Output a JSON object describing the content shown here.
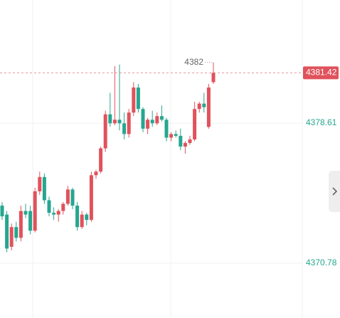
{
  "chart_data": {
    "type": "candlestick",
    "open": [
      4374.0,
      4373.5,
      4371.7,
      4372.8,
      4372.2,
      4373.7,
      4373.7,
      4372.6,
      4374.8,
      4375.6,
      4374.3,
      4373.6,
      4373.5,
      4373.7,
      4374.1,
      4374.9,
      4374.0,
      4372.8,
      4373.5,
      4373.2,
      4375.7,
      4375.9,
      4377.2,
      4379.1,
      4378.6,
      4378.8,
      4378.6,
      4378.0,
      4379.2,
      4380.6,
      4379.4,
      4378.3,
      4378.8,
      4378.6,
      4379.0,
      4378.8,
      4377.8,
      4378.0,
      4377.9,
      4377.3,
      4377.5,
      4377.7,
      4379.4,
      4379.7,
      4378.4,
      4380.9
    ],
    "high": [
      4374.2,
      4373.7,
      4373.0,
      4373.1,
      4374.0,
      4374.1,
      4374.0,
      4375.0,
      4375.9,
      4375.8,
      4374.5,
      4373.9,
      4373.8,
      4374.2,
      4375.1,
      4375.0,
      4374.2,
      4373.7,
      4373.6,
      4375.9,
      4376.0,
      4377.3,
      4379.3,
      4380.3,
      4381.8,
      4381.88,
      4379.2,
      4379.4,
      4380.9,
      4380.8,
      4379.5,
      4378.9,
      4379.3,
      4379.2,
      4379.6,
      4378.9,
      4378.1,
      4378.2,
      4378.3,
      4377.6,
      4377.9,
      4379.8,
      4379.8,
      4380.3,
      4380.8,
      4382.0
    ],
    "low": [
      4373.2,
      4371.4,
      4371.5,
      4372.0,
      4372.0,
      4373.3,
      4372.4,
      4372.5,
      4374.6,
      4374.1,
      4373.4,
      4373.2,
      4373.1,
      4373.5,
      4374.0,
      4373.8,
      4372.6,
      4372.7,
      4372.9,
      4373.1,
      4375.5,
      4375.8,
      4377.0,
      4378.4,
      4378.5,
      4378.2,
      4377.7,
      4377.8,
      4379.0,
      4379.2,
      4378.1,
      4378.0,
      4378.4,
      4378.5,
      4378.7,
      4377.6,
      4377.6,
      4377.8,
      4377.1,
      4376.9,
      4377.4,
      4377.6,
      4379.2,
      4379.2,
      4378.3,
      4380.8
    ],
    "close": [
      4373.4,
      4371.6,
      4372.8,
      4372.2,
      4373.7,
      4373.5,
      4372.6,
      4374.8,
      4375.6,
      4374.3,
      4373.6,
      4373.5,
      4373.7,
      4374.1,
      4374.9,
      4374.0,
      4372.8,
      4373.5,
      4373.2,
      4375.7,
      4375.9,
      4377.2,
      4379.1,
      4378.6,
      4378.8,
      4378.6,
      4378.0,
      4379.2,
      4380.6,
      4379.4,
      4378.3,
      4378.8,
      4378.6,
      4379.0,
      4378.8,
      4377.8,
      4378.0,
      4377.9,
      4377.3,
      4377.5,
      4377.7,
      4379.4,
      4379.7,
      4379.5,
      4380.6,
      4381.42
    ],
    "up_color": "#e0525c",
    "down_color": "#26a68f",
    "ylim": [
      4367.72,
      4385.49
    ],
    "yticks": [
      4378.61,
      4370.78
    ],
    "grid": true
  }
}
